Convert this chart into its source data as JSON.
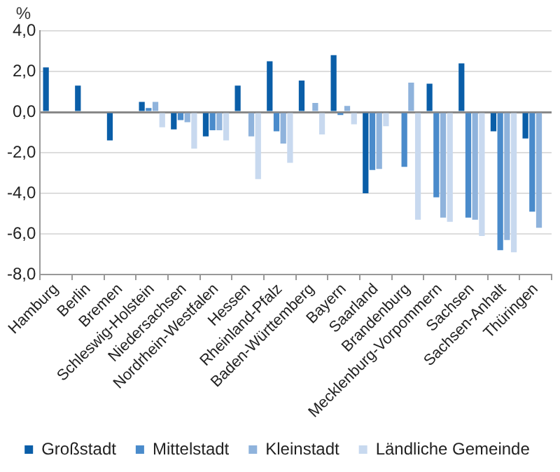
{
  "chart_data": {
    "type": "bar",
    "ylabel": "%",
    "categories": [
      "Hamburg",
      "Berlin",
      "Bremen",
      "Schleswig-Holstein",
      "Niedersachsen",
      "Nordrhein-Westfalen",
      "Hessen",
      "Rheinland-Pfalz",
      "Baden-Württemberg",
      "Bayern",
      "Saarland",
      "Brandenburg",
      "Mecklenburg-Vorpommern",
      "Sachsen",
      "Sachsen-Anhalt",
      "Thüringen"
    ],
    "series": [
      {
        "name": "Großstadt",
        "color": "#0a5ea8",
        "values": [
          2.2,
          1.3,
          -1.4,
          0.5,
          -0.85,
          -1.2,
          1.3,
          2.5,
          1.55,
          2.8,
          -4.0,
          0.05,
          1.4,
          2.4,
          -0.95,
          -1.3
        ]
      },
      {
        "name": "Mittelstadt",
        "color": "#4a8bcb",
        "values": [
          null,
          null,
          null,
          0.2,
          -0.4,
          -0.9,
          0,
          -0.95,
          0.05,
          -0.15,
          -2.85,
          -2.7,
          -4.2,
          -5.2,
          -6.8,
          -4.9
        ]
      },
      {
        "name": "Kleinstadt",
        "color": "#8fb3dc",
        "values": [
          null,
          null,
          null,
          0.5,
          -0.5,
          -0.9,
          -1.2,
          -1.55,
          0.45,
          0.3,
          -2.8,
          1.45,
          -5.2,
          -5.3,
          -6.3,
          -5.7
        ]
      },
      {
        "name": "Ländliche Gemeinde",
        "color": "#c8d9ef",
        "values": [
          null,
          null,
          null,
          -0.75,
          -1.8,
          -1.4,
          -3.3,
          -2.5,
          -1.1,
          -0.6,
          -0.7,
          -5.3,
          -5.4,
          -6.1,
          -6.9,
          null
        ]
      }
    ],
    "ylim": [
      -8,
      4
    ],
    "yticks": [
      {
        "value": 4,
        "label": "4,0"
      },
      {
        "value": 2,
        "label": "2,0"
      },
      {
        "value": 0,
        "label": "0,0"
      },
      {
        "value": -2,
        "label": "-2,0"
      },
      {
        "value": -4,
        "label": "-4,0"
      },
      {
        "value": -6,
        "label": "-6,0"
      },
      {
        "value": -8,
        "label": "-8,0"
      }
    ],
    "grid": "y",
    "legend": "bottom"
  }
}
